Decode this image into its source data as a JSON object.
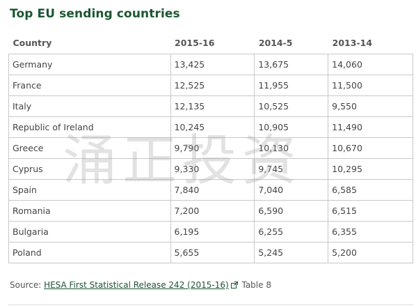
{
  "title": "Top EU sending countries",
  "table": {
    "headers": [
      "Country",
      "2015-16",
      "2014-5",
      "2013-14"
    ],
    "rows": [
      [
        "Germany",
        "13,425",
        "13,675",
        "14,060"
      ],
      [
        "France",
        "12,525",
        "11,955",
        "11,500"
      ],
      [
        "Italy",
        "12,135",
        "10,525",
        "9,550"
      ],
      [
        "Republic of Ireland",
        "10,245",
        "10,905",
        "11,490"
      ],
      [
        "Greece",
        "9,790",
        "10,130",
        "10,670"
      ],
      [
        "Cyprus",
        "9,330",
        "9,745",
        "10,295"
      ],
      [
        "Spain",
        "7,840",
        "7,040",
        "6,585"
      ],
      [
        "Romania",
        "7,200",
        "6,590",
        "6,515"
      ],
      [
        "Bulgaria",
        "6,195",
        "6,255",
        "6,355"
      ],
      [
        "Poland",
        "5,655",
        "5,245",
        "5,200"
      ]
    ]
  },
  "source": {
    "prefix": "Source: ",
    "link_text": "HESA First Statistical Release 242 (2015-16)",
    "link_icon": "external-link-icon",
    "suffix": " Table 8"
  },
  "watermark": "涌正投资",
  "colors": {
    "title": "#1a5632",
    "link": "#1a5632",
    "border": "#c8c8c8"
  }
}
